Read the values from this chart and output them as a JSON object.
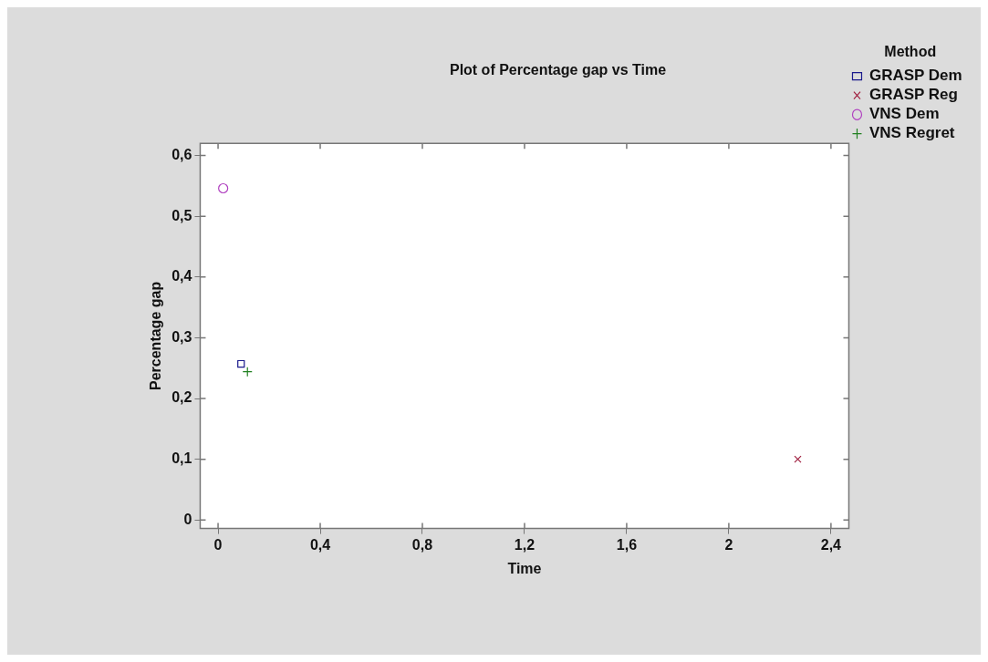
{
  "chart_data": {
    "type": "scatter",
    "title": "Plot of Percentage gap vs Time",
    "xlabel": "Time",
    "ylabel": "Percentage gap",
    "legend_title": "Method",
    "legend": "right",
    "xlim": [
      -0.07,
      2.47
    ],
    "xticks": [
      0,
      {
        "value": 0.4,
        "label": "0,4"
      },
      {
        "value": 0.8,
        "label": "0,8"
      },
      {
        "value": 1.2,
        "label": "1,2"
      },
      {
        "value": 1.6,
        "label": "1,6"
      },
      2,
      {
        "value": 2.4,
        "label": "2,4"
      }
    ],
    "ylim": [
      -0.014,
      0.62
    ],
    "yticks": [
      0,
      {
        "value": 0.1,
        "label": "0,1"
      },
      {
        "value": 0.2,
        "label": "0,2"
      },
      {
        "value": 0.3,
        "label": "0,3"
      },
      {
        "value": 0.4,
        "label": "0,4"
      },
      {
        "value": 0.5,
        "label": "0,5"
      },
      {
        "value": 0.6,
        "label": "0,6"
      }
    ],
    "grid": false,
    "series": [
      {
        "name": "GRASP Dem",
        "color": "#1a1a8c",
        "marker": "square",
        "x": [
          0.09
        ],
        "values": [
          0.257
        ]
      },
      {
        "name": "GRASP Reg",
        "color": "#a02040",
        "marker": "cross",
        "x": [
          2.27
        ],
        "values": [
          0.1
        ]
      },
      {
        "name": "VNS Dem",
        "color": "#b040c0",
        "marker": "circle",
        "x": [
          0.02
        ],
        "values": [
          0.546
        ]
      },
      {
        "name": "VNS Regret",
        "color": "#208020",
        "marker": "plus",
        "x": [
          0.115
        ],
        "values": [
          0.244
        ]
      }
    ]
  }
}
